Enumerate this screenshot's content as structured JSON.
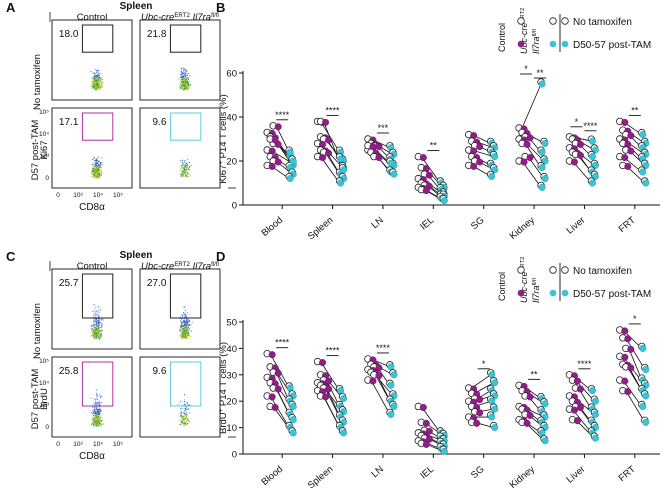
{
  "colors": {
    "control": "#ffffff",
    "ubc": "#8e1f87",
    "post": "#3cc4d6",
    "stroke": "#222222",
    "gate_ctrl": "#222222",
    "gate_ubc": "#b030a8",
    "gate_post": "#5fcddd"
  },
  "panels": {
    "A": {
      "letter": "A",
      "tissue": "Spleen",
      "col1": "Control",
      "col2_a": "Ubc-cre",
      "col2_sup1": "ERT2",
      "col2_b": " Il7ra",
      "col2_sup2": "fl/fl",
      "row1": "No tamoxifen",
      "row2": "D57 post-TAM",
      "ylabel": "Ki67",
      "xlabel": "CD8α",
      "ticks_y": [
        "10⁵",
        "10⁴",
        "10³",
        "0"
      ],
      "ticks_x": [
        "0",
        "10³",
        "10⁴",
        "10⁵"
      ],
      "values": [
        "18.0",
        "21.8",
        "17.1",
        "9.6"
      ]
    },
    "C": {
      "letter": "C",
      "tissue": "Spleen",
      "col1": "Control",
      "col2_a": "Ubc-cre",
      "col2_sup1": "ERT2",
      "col2_b": " Il7ra",
      "col2_sup2": "fl/fl",
      "row1": "No tamoxifen",
      "row2": "D57 post-TAM",
      "ylabel": "BrdU",
      "xlabel": "CD8α",
      "ticks_y": [
        "10⁵",
        "10⁴",
        "10³",
        "0"
      ],
      "ticks_x": [
        "0",
        "10³",
        "10⁴",
        "10⁵"
      ],
      "values": [
        "25.7",
        "27.0",
        "25.8",
        "9.6"
      ]
    }
  },
  "legend": {
    "control": "Control",
    "ubc_a": "Ubc-cre",
    "ubc_sup1": "ERT2",
    "ubc_b": "Il7ra",
    "ubc_sup2": "fl/fl",
    "no_tam": "No tamoxifen",
    "post_tam": "D50-57 post-TAM"
  },
  "chart_data": [
    {
      "panel": "B",
      "type": "scatter",
      "ylabel_main": "Ki67",
      "ylabel_sup": "+",
      "ylabel_rest": " P14 T cells (%)",
      "ylim": [
        0,
        60
      ],
      "yticks": [
        "0",
        "20",
        "40",
        "60"
      ],
      "categories": [
        "Blood",
        "Spleen",
        "LN",
        "IEL",
        "SG",
        "Kidney",
        "Liver",
        "FRT"
      ],
      "significance": [
        "****",
        "****",
        "***",
        "**",
        "",
        "*|**",
        "*|****",
        "**"
      ],
      "series": [
        {
          "name": "Control",
          "pairs": [
            [
              [
                33,
                22
              ],
              [
                31,
                18
              ],
              [
                28,
                23
              ],
              [
                25,
                19
              ],
              [
                22,
                17
              ],
              [
                20,
                14
              ],
              [
                18,
                12
              ],
              [
                30,
                20
              ],
              [
                36,
                24
              ]
            ],
            [
              [
                38,
                24
              ],
              [
                31,
                20
              ],
              [
                30,
                21
              ],
              [
                28,
                17
              ],
              [
                25,
                14
              ],
              [
                24,
                12
              ],
              [
                22,
                10
              ],
              [
                38,
                16
              ]
            ],
            [
              [
                30,
                26
              ],
              [
                28,
                23
              ],
              [
                27,
                21
              ],
              [
                25,
                18
              ],
              [
                24,
                15
              ],
              [
                22,
                14
              ],
              [
                27,
                19
              ]
            ],
            [
              [
                22,
                10
              ],
              [
                17,
                8
              ],
              [
                14,
                7
              ],
              [
                12,
                5
              ],
              [
                10,
                4
              ],
              [
                9,
                4
              ],
              [
                8,
                3
              ],
              [
                7,
                2
              ]
            ],
            [
              [
                32,
                28
              ],
              [
                29,
                26
              ],
              [
                27,
                24
              ],
              [
                25,
                22
              ],
              [
                22,
                18
              ],
              [
                20,
                16
              ],
              [
                18,
                13
              ]
            ],
            [
              [
                35,
                55
              ],
              [
                33,
                28
              ],
              [
                31,
                24
              ],
              [
                30,
                20
              ],
              [
                28,
                17
              ],
              [
                22,
                12
              ],
              [
                20,
                8
              ]
            ],
            [
              [
                31,
                29
              ],
              [
                30,
                25
              ],
              [
                28,
                22
              ],
              [
                26,
                18
              ],
              [
                24,
                15
              ],
              [
                23,
                13
              ],
              [
                20,
                10
              ]
            ],
            [
              [
                38,
                32
              ],
              [
                34,
                28
              ],
              [
                32,
                26
              ],
              [
                30,
                23
              ],
              [
                28,
                21
              ],
              [
                25,
                18
              ],
              [
                22,
                15
              ],
              [
                18,
                10
              ]
            ]
          ]
        }
      ]
    },
    {
      "panel": "D",
      "type": "scatter",
      "ylabel_main": "BrdU",
      "ylabel_sup": "+",
      "ylabel_rest": " P14 T cells (%)",
      "ylim": [
        0,
        50
      ],
      "yticks": [
        "0",
        "10",
        "20",
        "30",
        "40",
        "50"
      ],
      "categories": [
        "Blood",
        "Spleen",
        "LN",
        "IEL",
        "SG",
        "Kidney",
        "Liver",
        "FRT"
      ],
      "significance": [
        "****",
        "****",
        "****",
        "",
        "*",
        "**",
        "****",
        "*"
      ],
      "series": [
        {
          "name": "Control",
          "pairs": [
            [
              [
                38,
                25
              ],
              [
                33,
                22
              ],
              [
                31,
                20
              ],
              [
                29,
                18
              ],
              [
                27,
                15
              ],
              [
                25,
                13
              ],
              [
                22,
                10
              ],
              [
                18,
                8
              ]
            ],
            [
              [
                35,
                24
              ],
              [
                30,
                21
              ],
              [
                28,
                18
              ],
              [
                27,
                16
              ],
              [
                26,
                14
              ],
              [
                25,
                12
              ],
              [
                24,
                10
              ],
              [
                22,
                8
              ]
            ],
            [
              [
                36,
                33
              ],
              [
                34,
                30
              ],
              [
                33,
                26
              ],
              [
                32,
                22
              ],
              [
                31,
                20
              ],
              [
                30,
                18
              ],
              [
                28,
                15
              ]
            ],
            [
              [
                18,
                8
              ],
              [
                12,
                7
              ],
              [
                9,
                6
              ],
              [
                8,
                5
              ],
              [
                7,
                4
              ],
              [
                6,
                3
              ],
              [
                5,
                2
              ],
              [
                4,
                1
              ]
            ],
            [
              [
                25,
                30
              ],
              [
                23,
                27
              ],
              [
                21,
                24
              ],
              [
                20,
                22
              ],
              [
                18,
                20
              ],
              [
                16,
                17
              ],
              [
                14,
                14
              ],
              [
                12,
                10
              ]
            ],
            [
              [
                26,
                21
              ],
              [
                24,
                19
              ],
              [
                22,
                16
              ],
              [
                18,
                14
              ],
              [
                17,
                12
              ],
              [
                15,
                10
              ],
              [
                13,
                8
              ],
              [
                12,
                5
              ]
            ],
            [
              [
                30,
                24
              ],
              [
                28,
                20
              ],
              [
                25,
                17
              ],
              [
                22,
                15
              ],
              [
                20,
                12
              ],
              [
                18,
                10
              ],
              [
                17,
                8
              ],
              [
                13,
                6
              ]
            ],
            [
              [
                47,
                40
              ],
              [
                44,
                32
              ],
              [
                40,
                28
              ],
              [
                37,
                26
              ],
              [
                34,
                24
              ],
              [
                33,
                22
              ],
              [
                28,
                18
              ],
              [
                24,
                12
              ]
            ]
          ]
        }
      ]
    }
  ]
}
